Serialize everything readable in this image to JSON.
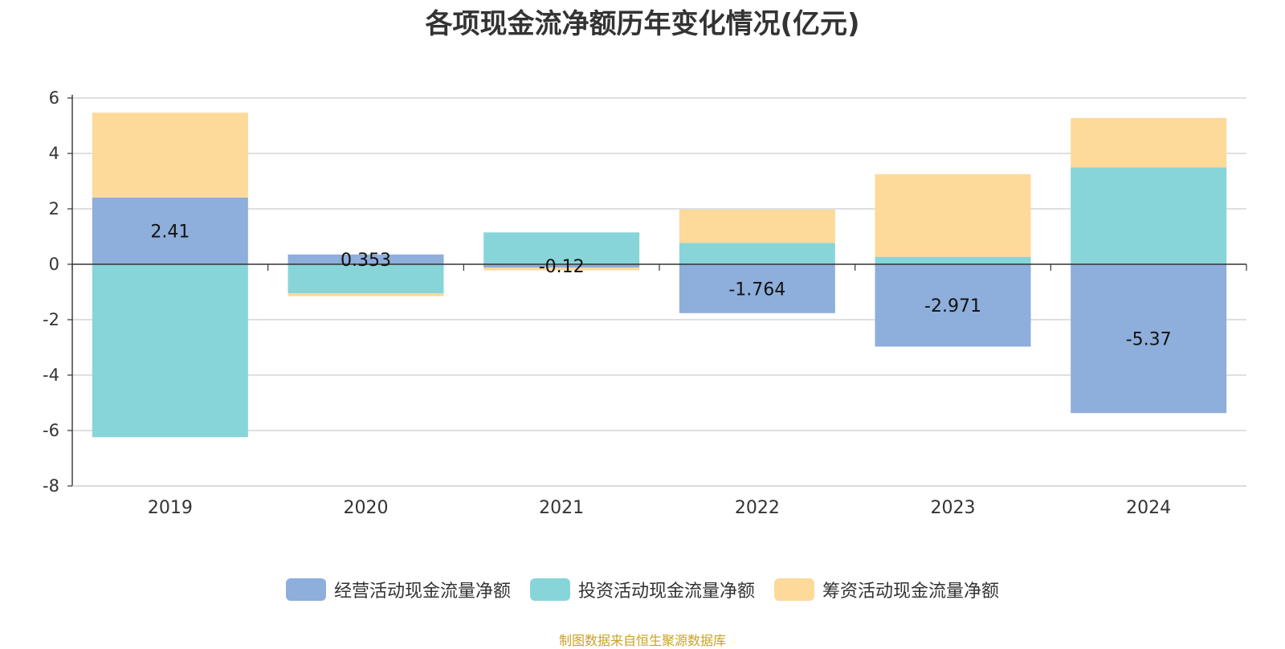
{
  "chart_data": {
    "type": "bar",
    "stacked": true,
    "title": "各项现金流净额历年变化情况(亿元)",
    "categories": [
      "2019",
      "2020",
      "2021",
      "2022",
      "2023",
      "2024"
    ],
    "series": [
      {
        "name": "经营活动现金流量净额",
        "color": "#8eaedb",
        "values": [
          2.41,
          0.353,
          -0.12,
          -1.764,
          -2.971,
          -5.37
        ],
        "labels": [
          "2.41",
          "0.353",
          "-0.12",
          "-1.764",
          "-2.971",
          "-5.37"
        ]
      },
      {
        "name": "投资活动现金流量净额",
        "color": "#87d5d8",
        "values": [
          -6.24,
          -1.05,
          1.15,
          0.77,
          0.27,
          3.5
        ]
      },
      {
        "name": "筹资活动现金流量净额",
        "color": "#fdd99a",
        "values": [
          3.06,
          -0.1,
          -0.1,
          1.2,
          2.98,
          1.78
        ]
      }
    ],
    "ylim": [
      -8,
      6
    ],
    "yticks": [
      6,
      4,
      2,
      0,
      -2,
      -4,
      -6,
      -8
    ],
    "xlabel": "",
    "ylabel": "",
    "grid": true,
    "legend": "bottom"
  },
  "source_note": "制图数据来自恒生聚源数据库"
}
